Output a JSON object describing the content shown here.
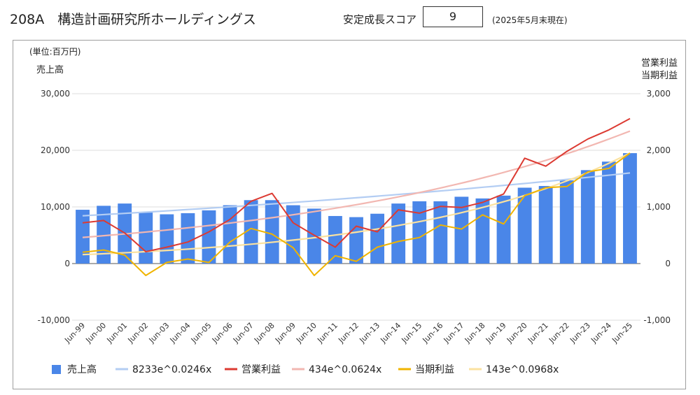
{
  "header": {
    "title": "208A　構造計画研究所ホールディングス",
    "score_label": "安定成長スコア",
    "score_value": "9",
    "as_of": "(2025年5月末現在)"
  },
  "chart_data": {
    "type": "bar+line",
    "unit_note": "(単位:百万円)",
    "left_axis_title": "売上高",
    "right_axis_title_1": "営業利益",
    "right_axis_title_2": "当期利益",
    "left_ticks": [
      "30,000",
      "20,000",
      "10,000",
      "0",
      "-10,000"
    ],
    "right_ticks": [
      "3,000",
      "2,000",
      "1,000",
      "0",
      "-1,000"
    ],
    "ylim_left": [
      -10000,
      30000
    ],
    "ylim_right": [
      -1000,
      3000
    ],
    "grid": true,
    "legend_position": "bottom",
    "categories": [
      "Jun-99",
      "Jun-00",
      "Jun-01",
      "Jun-02",
      "Jun-03",
      "Jun-04",
      "Jun-05",
      "Jun-06",
      "Jun-07",
      "Jun-08",
      "Jun-09",
      "Jun-10",
      "Jun-11",
      "Jun-12",
      "Jun-13",
      "Jun-14",
      "Jun-15",
      "Jun-16",
      "Jun-17",
      "Jun-18",
      "Jun-19",
      "Jun-20",
      "Jun-21",
      "Jun-22",
      "Jun-23",
      "Jun-24",
      "Jun-25"
    ],
    "series": [
      {
        "name": "売上高",
        "kind": "bar",
        "axis": "left",
        "color": "#4a86e8",
        "values": [
          9500,
          10200,
          10600,
          9000,
          8700,
          8900,
          9400,
          10300,
          11200,
          11200,
          10300,
          9700,
          8400,
          8200,
          8800,
          10600,
          11000,
          11000,
          11800,
          11500,
          12000,
          13400,
          13700,
          14700,
          16500,
          18000,
          19500
        ]
      },
      {
        "name": "8233e^0.0246x",
        "kind": "trend",
        "axis": "left",
        "color": "#b3cdf3",
        "a": 8233,
        "b": 0.0246
      },
      {
        "name": "営業利益",
        "kind": "line",
        "axis": "right",
        "color": "#dc3a32",
        "values": [
          720,
          760,
          540,
          210,
          290,
          380,
          560,
          780,
          1100,
          1240,
          720,
          500,
          290,
          660,
          560,
          950,
          890,
          1010,
          990,
          1080,
          1230,
          1860,
          1720,
          1980,
          2200,
          2360,
          2560
        ]
      },
      {
        "name": "434e^0.0624x",
        "kind": "trend",
        "axis": "right",
        "color": "#f2b7b1",
        "a": 434,
        "b": 0.0624
      },
      {
        "name": "当期利益",
        "kind": "line",
        "axis": "right",
        "color": "#f0b400",
        "values": [
          200,
          240,
          150,
          -210,
          20,
          80,
          20,
          380,
          620,
          520,
          280,
          -210,
          140,
          40,
          290,
          390,
          460,
          680,
          610,
          860,
          700,
          1200,
          1340,
          1360,
          1620,
          1680,
          1950
        ]
      },
      {
        "name": "143e^0.0968x",
        "kind": "trend",
        "axis": "right",
        "color": "#fbe2a0",
        "a": 143,
        "b": 0.0968
      }
    ]
  }
}
